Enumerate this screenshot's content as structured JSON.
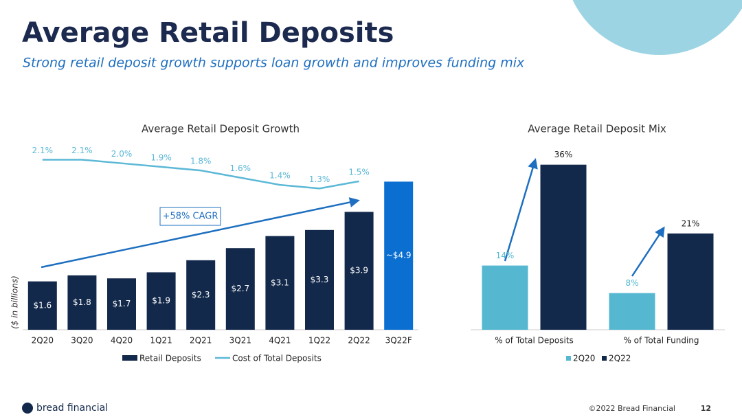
{
  "title": "Average Retail Deposits",
  "subtitle": "Strong retail deposit growth supports loan growth and improves funding mix",
  "footer": {
    "logo": "bread financial",
    "copyright": "©2022 Bread Financial",
    "page": 12
  },
  "chart_data": [
    {
      "type": "bar_line",
      "title": "Average Retail Deposit Growth",
      "y_label": "($ in billions)",
      "annotation": "+58% CAGR",
      "categories": [
        "2Q20",
        "3Q20",
        "4Q20",
        "1Q21",
        "2Q21",
        "3Q21",
        "4Q21",
        "1Q22",
        "2Q22",
        "3Q22F"
      ],
      "ylim": [
        0,
        5.5
      ],
      "y2lim": [
        1.0,
        2.3
      ],
      "series": [
        {
          "name": "Retail Deposits",
          "type": "bar",
          "color": "#13294b",
          "colors": [
            "#13294b",
            "#13294b",
            "#13294b",
            "#13294b",
            "#13294b",
            "#13294b",
            "#13294b",
            "#13294b",
            "#13294b",
            "#0a6fd0"
          ],
          "values": [
            1.6,
            1.8,
            1.7,
            1.9,
            2.3,
            2.7,
            3.1,
            3.3,
            3.9,
            4.9
          ],
          "value_labels": [
            "$1.6",
            "$1.8",
            "$1.7",
            "$1.9",
            "$2.3",
            "$2.7",
            "$3.1",
            "$3.3",
            "$3.9",
            "~$4.9"
          ]
        },
        {
          "name": "Cost of Total Deposits",
          "type": "line",
          "axis": "y2",
          "color": "#5bb8d6",
          "values": [
            2.1,
            2.1,
            2.0,
            1.9,
            1.8,
            1.6,
            1.4,
            1.3,
            1.5,
            null
          ],
          "value_labels": [
            "2.1%",
            "2.1%",
            "2.0%",
            "1.9%",
            "1.8%",
            "1.6%",
            "1.4%",
            "1.3%",
            "1.5%",
            null
          ]
        }
      ]
    },
    {
      "type": "grouped_bar",
      "title": "Average Retail Deposit Mix",
      "categories": [
        "% of Total Deposits",
        "% of Total Funding"
      ],
      "ylim": [
        0,
        40
      ],
      "series": [
        {
          "name": "2Q20",
          "color": "#55b8d0",
          "values": [
            14,
            8
          ],
          "value_labels": [
            "14%",
            "8%"
          ]
        },
        {
          "name": "2Q22",
          "color": "#13294b",
          "values": [
            36,
            21
          ],
          "value_labels": [
            "36%",
            "21%"
          ]
        }
      ]
    }
  ]
}
